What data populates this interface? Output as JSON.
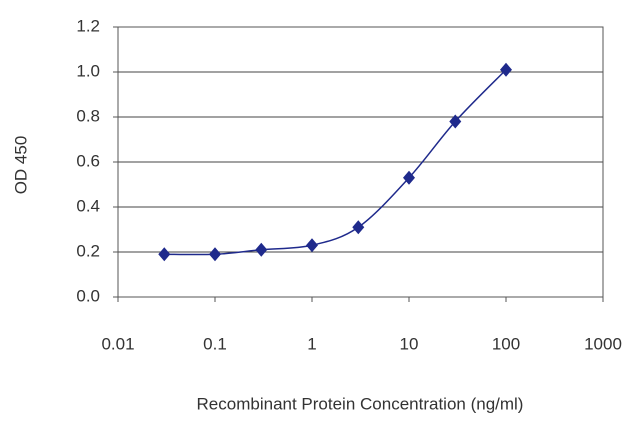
{
  "chart_data": {
    "type": "scatter",
    "x_label": "Recombinant Protein Concentration (ng/ml)",
    "y_label": "OD 450",
    "x_scale": "log",
    "grid": true,
    "color": "#1f2a8c",
    "x": [
      0.03,
      0.1,
      0.3,
      1,
      3,
      10,
      30,
      100
    ],
    "values": [
      0.19,
      0.19,
      0.21,
      0.23,
      0.31,
      0.53,
      0.78,
      1.01
    ],
    "xlim": [
      0.01,
      1000
    ],
    "xticks": [
      0.01,
      0.1,
      1,
      10,
      100,
      1000
    ],
    "ylim": [
      0,
      1.2
    ],
    "yticks": [
      {
        "value": 0,
        "label": "0.0"
      },
      0.2,
      0.4,
      0.6,
      0.8,
      {
        "value": 1,
        "label": "1.0"
      },
      {
        "value": 1.2,
        "label": "1.2"
      }
    ]
  }
}
